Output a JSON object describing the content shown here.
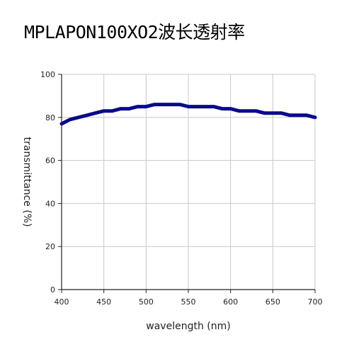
{
  "title": "MPLAPON100XO2波长透射率",
  "chart_data": {
    "type": "line",
    "xlabel": "wavelength (nm)",
    "ylabel": "transmittance (%)",
    "xlim": [
      400,
      700
    ],
    "ylim": [
      0,
      100
    ],
    "xticks": [
      400,
      450,
      500,
      550,
      600,
      650,
      700
    ],
    "yticks": [
      0,
      20,
      40,
      60,
      80,
      100
    ],
    "grid": true,
    "line_color": "#0a0a8a",
    "series": [
      {
        "x": [
          400,
          410,
          420,
          430,
          440,
          450,
          460,
          470,
          480,
          490,
          500,
          510,
          520,
          530,
          540,
          550,
          560,
          570,
          580,
          590,
          600,
          610,
          620,
          630,
          640,
          650,
          660,
          670,
          680,
          690,
          700
        ],
        "values": [
          77.0,
          79.0,
          80.0,
          81.0,
          82.0,
          83.0,
          83.0,
          84.0,
          84.0,
          85.0,
          85.0,
          86.0,
          86.0,
          86.0,
          86.0,
          85.0,
          85.0,
          85.0,
          85.0,
          84.0,
          84.0,
          83.0,
          83.0,
          83.0,
          82.0,
          82.0,
          82.0,
          81.0,
          81.0,
          81.0,
          80.0
        ]
      }
    ]
  }
}
